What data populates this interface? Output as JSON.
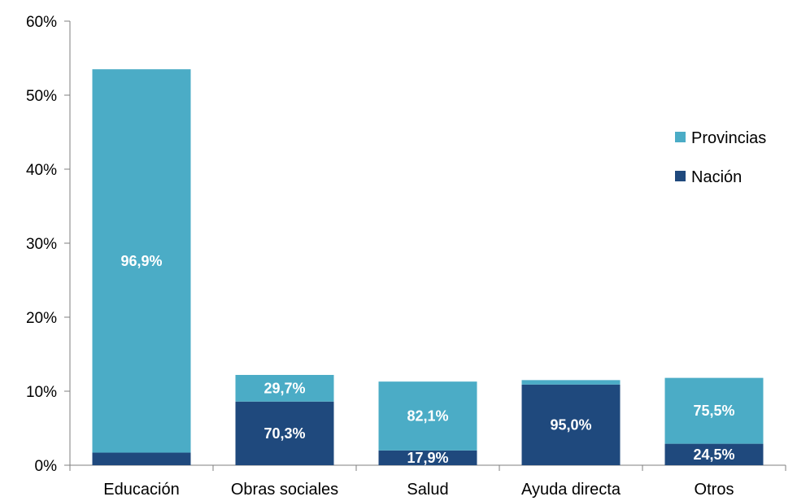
{
  "chart_data": {
    "type": "bar",
    "stacked": true,
    "categories": [
      "Educación",
      "Obras sociales",
      "Salud",
      "Ayuda directa",
      "Otros"
    ],
    "series": [
      {
        "name": "Nación",
        "color": "#1f497d",
        "values": [
          1.7,
          8.6,
          2.0,
          10.9,
          2.9
        ],
        "labels": [
          "",
          "70,3%",
          "17,9%",
          "95,0%",
          "24,5%"
        ]
      },
      {
        "name": "Provincias",
        "color": "#4bacc6",
        "values": [
          51.8,
          3.6,
          9.3,
          0.6,
          8.9
        ],
        "labels": [
          "96,9%",
          "29,7%",
          "82,1%",
          "",
          "75,5%"
        ]
      }
    ],
    "ylim": [
      0,
      60
    ],
    "yticks": [
      0,
      10,
      20,
      30,
      40,
      50,
      60
    ],
    "ytick_labels": [
      "0%",
      "10%",
      "20%",
      "30%",
      "40%",
      "50%",
      "60%"
    ],
    "grid": false,
    "legend": {
      "placement": "right",
      "entries": [
        "Provincias",
        "Nación"
      ]
    }
  }
}
